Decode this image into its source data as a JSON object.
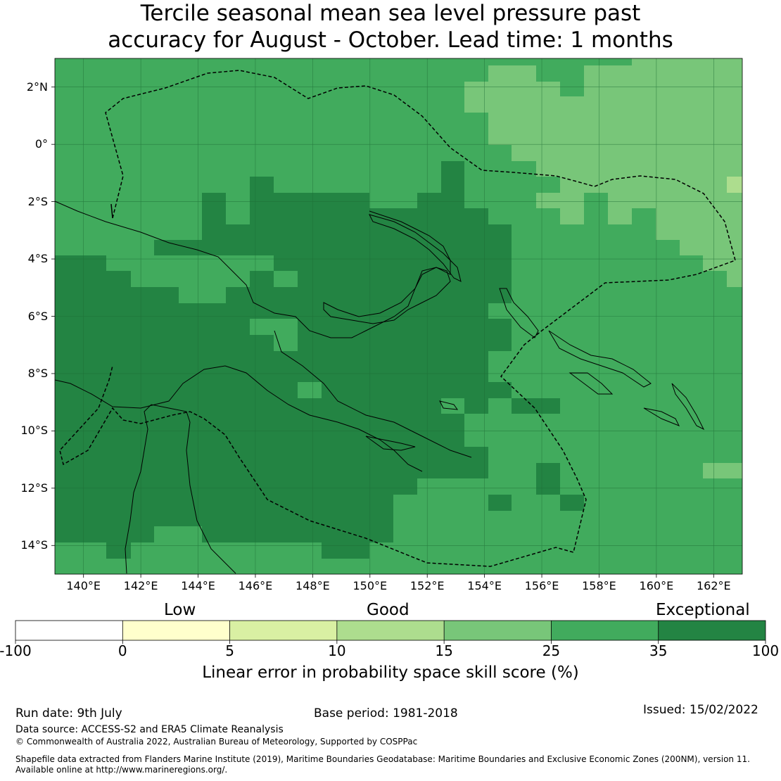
{
  "title_line1": "Tercile seasonal mean sea level pressure past",
  "title_line2": "accuracy for August - October. Lead time: 1 months",
  "map": {
    "lon_range": [
      139,
      163
    ],
    "lat_range": [
      -15,
      3
    ],
    "lat_ticks": [
      {
        "value": 2,
        "label": "2°N"
      },
      {
        "value": 0,
        "label": "0°"
      },
      {
        "value": -2,
        "label": "2°S"
      },
      {
        "value": -4,
        "label": "4°S"
      },
      {
        "value": -6,
        "label": "6°S"
      },
      {
        "value": -8,
        "label": "8°S"
      },
      {
        "value": -10,
        "label": "10°S"
      },
      {
        "value": -12,
        "label": "12°S"
      },
      {
        "value": -14,
        "label": "14°S"
      }
    ],
    "lon_ticks": [
      {
        "value": 140,
        "label": "140°E"
      },
      {
        "value": 142,
        "label": "142°E"
      },
      {
        "value": 144,
        "label": "144°E"
      },
      {
        "value": 146,
        "label": "146°E"
      },
      {
        "value": 148,
        "label": "148°E"
      },
      {
        "value": 150,
        "label": "150°E"
      },
      {
        "value": 152,
        "label": "152°E"
      },
      {
        "value": 154,
        "label": "154°E"
      },
      {
        "value": 156,
        "label": "156°E"
      },
      {
        "value": 158,
        "label": "158°E"
      },
      {
        "value": 160,
        "label": "160°E"
      },
      {
        "value": 162,
        "label": "162°E"
      }
    ],
    "colors": {
      "c25": "#41ab5d",
      "c35": "#238443",
      "c15": "#78c679",
      "c10": "#addd8e"
    }
  },
  "colorbar": {
    "categories": [
      "Low",
      "Good",
      "Exceptional"
    ],
    "ticks": [
      "-100",
      "0",
      "5",
      "10",
      "15",
      "25",
      "35",
      "100"
    ],
    "colors": [
      "#ffffff",
      "#ffffcc",
      "#d9f0a3",
      "#addd8e",
      "#78c679",
      "#41ab5d",
      "#238443"
    ],
    "label": "Linear error in probability space skill score (%)"
  },
  "footer": {
    "run_date": "Run date: 9th July",
    "base_period": "Base period: 1981-2018",
    "issued": "Issued: 15/02/2022",
    "data_source": "Data source: ACCESS-S2 and ERA5 Climate Reanalysis",
    "copyright": "© Commonwealth of Australia 2022, Australian Bureau of Meteorology, Supported by COSPPac",
    "shapefile1": "Shapefile data extracted from Flanders Marine Institute (2019), Maritime Boundaries Geodatabase: Maritime Boundaries and Exclusive Economic Zones (200NM), version 11.",
    "shapefile2": "Available online at http://www.marineregions.org/."
  }
}
